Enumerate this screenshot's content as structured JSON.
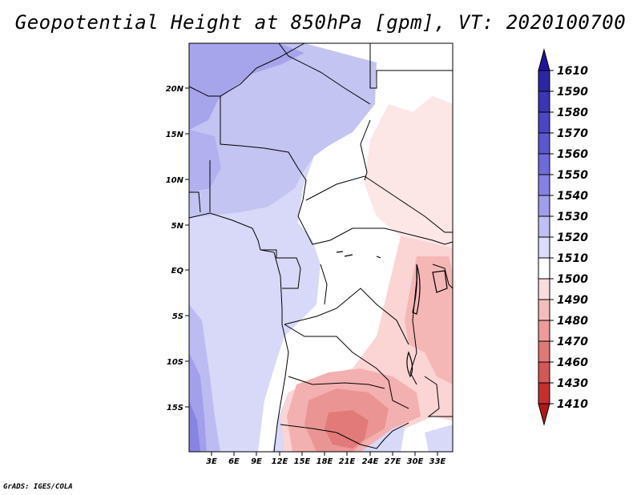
{
  "title": "Geopotential Height at 850hPa [gpm], VT: 2020100700",
  "credit": "GrADS: IGES/COLA",
  "map": {
    "variable": "Geopotential Height at 850hPa",
    "units": "gpm",
    "lat_labels": [
      "20N",
      "15N",
      "10N",
      "5N",
      "EQ",
      "5S",
      "10S",
      "15S"
    ],
    "lon_labels": [
      "3E",
      "6E",
      "9E",
      "12E",
      "15E",
      "18E",
      "21E",
      "24E",
      "27E",
      "30E",
      "33E"
    ]
  },
  "colorbar": {
    "levels": [
      "1610",
      "1590",
      "1580",
      "1570",
      "1560",
      "1550",
      "1540",
      "1530",
      "1520",
      "1510",
      "1500",
      "1490",
      "1480",
      "1470",
      "1460",
      "1430",
      "1410"
    ],
    "colors": [
      "#1f159a",
      "#2c25a8",
      "#3a35b6",
      "#4a45c4",
      "#5c57d0",
      "#6f6adb",
      "#8581e4",
      "#a09eec",
      "#bfbff4",
      "#dcdcfa",
      "#ffffff",
      "#fbdcdc",
      "#f5bcbc",
      "#ec9a9a",
      "#e07878",
      "#d45656",
      "#c43030",
      "#b01818"
    ]
  }
}
